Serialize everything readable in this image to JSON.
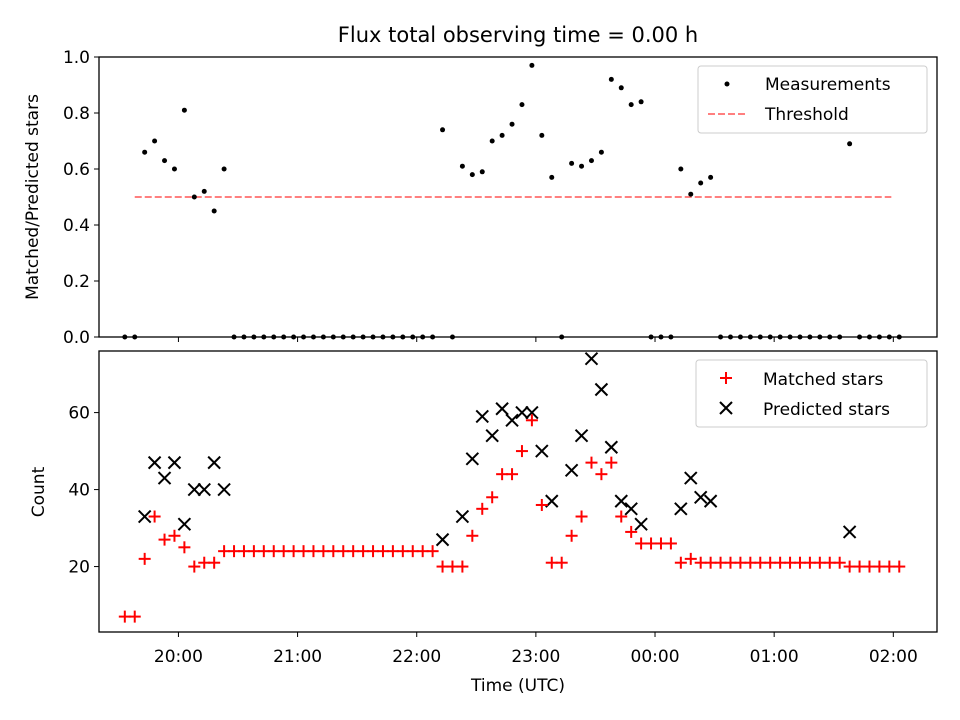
{
  "chart_data": [
    {
      "type": "scatter",
      "title": "Flux total observing time = 0.00 h",
      "ylabel": "Matched/Predicted stars",
      "xlabel": "",
      "ylim": [
        0,
        1.0
      ],
      "yticks": [
        "0.0",
        "0.2",
        "0.4",
        "0.6",
        "0.8",
        "1.0"
      ],
      "legend": {
        "placement": "top-right",
        "entries": [
          "Measurements",
          "Threshold"
        ]
      },
      "threshold": {
        "name": "Threshold",
        "value": 0.5,
        "x_start": "19:38",
        "x_end": "01:59",
        "color": "#ff7f7f"
      },
      "series": [
        {
          "name": "Measurements",
          "color": "#000000",
          "points": [
            [
              "19:33",
              0.0
            ],
            [
              "19:38",
              0.0
            ],
            [
              "19:43",
              0.66
            ],
            [
              "19:48",
              0.7
            ],
            [
              "19:53",
              0.63
            ],
            [
              "19:58",
              0.6
            ],
            [
              "20:03",
              0.81
            ],
            [
              "20:08",
              0.5
            ],
            [
              "20:13",
              0.52
            ],
            [
              "20:18",
              0.45
            ],
            [
              "20:23",
              0.6
            ],
            [
              "20:28",
              0.0
            ],
            [
              "20:33",
              0.0
            ],
            [
              "20:38",
              0.0
            ],
            [
              "20:43",
              0.0
            ],
            [
              "20:48",
              0.0
            ],
            [
              "20:53",
              0.0
            ],
            [
              "20:58",
              0.0
            ],
            [
              "21:03",
              0.0
            ],
            [
              "21:08",
              0.0
            ],
            [
              "21:13",
              0.0
            ],
            [
              "21:18",
              0.0
            ],
            [
              "21:23",
              0.0
            ],
            [
              "21:28",
              0.0
            ],
            [
              "21:33",
              0.0
            ],
            [
              "21:38",
              0.0
            ],
            [
              "21:43",
              0.0
            ],
            [
              "21:48",
              0.0
            ],
            [
              "21:53",
              0.0
            ],
            [
              "21:58",
              0.0
            ],
            [
              "22:03",
              0.0
            ],
            [
              "22:08",
              0.0
            ],
            [
              "22:13",
              0.74
            ],
            [
              "22:18",
              0.0
            ],
            [
              "22:23",
              0.61
            ],
            [
              "22:28",
              0.58
            ],
            [
              "22:33",
              0.59
            ],
            [
              "22:38",
              0.7
            ],
            [
              "22:43",
              0.72
            ],
            [
              "22:48",
              0.76
            ],
            [
              "22:53",
              0.83
            ],
            [
              "22:58",
              0.97
            ],
            [
              "23:03",
              0.72
            ],
            [
              "23:08",
              0.57
            ],
            [
              "23:13",
              0.0
            ],
            [
              "23:18",
              0.62
            ],
            [
              "23:23",
              0.61
            ],
            [
              "23:28",
              0.63
            ],
            [
              "23:33",
              0.66
            ],
            [
              "23:38",
              0.92
            ],
            [
              "23:43",
              0.89
            ],
            [
              "23:48",
              0.83
            ],
            [
              "23:53",
              0.84
            ],
            [
              "23:58",
              0.0
            ],
            [
              "00:03",
              0.0
            ],
            [
              "00:08",
              0.0
            ],
            [
              "00:13",
              0.6
            ],
            [
              "00:18",
              0.51
            ],
            [
              "00:23",
              0.55
            ],
            [
              "00:28",
              0.57
            ],
            [
              "00:33",
              0.0
            ],
            [
              "00:38",
              0.0
            ],
            [
              "00:43",
              0.0
            ],
            [
              "00:48",
              0.0
            ],
            [
              "00:53",
              0.0
            ],
            [
              "00:58",
              0.0
            ],
            [
              "01:03",
              0.0
            ],
            [
              "01:08",
              0.0
            ],
            [
              "01:13",
              0.0
            ],
            [
              "01:18",
              0.0
            ],
            [
              "01:23",
              0.0
            ],
            [
              "01:28",
              0.0
            ],
            [
              "01:33",
              0.0
            ],
            [
              "01:38",
              0.69
            ],
            [
              "01:43",
              0.0
            ],
            [
              "01:48",
              0.0
            ],
            [
              "01:53",
              0.0
            ],
            [
              "01:58",
              0.0
            ],
            [
              "02:03",
              0.0
            ]
          ]
        }
      ]
    },
    {
      "type": "scatter",
      "title": "",
      "ylabel": "Count",
      "xlabel": "Time (UTC)",
      "ylim": [
        3,
        76
      ],
      "yticks": [
        "20",
        "40",
        "60"
      ],
      "xticks": [
        "20:00",
        "21:00",
        "22:00",
        "23:00",
        "00:00",
        "01:00",
        "02:00"
      ],
      "x_start": "19:20",
      "x_end": "02:22",
      "legend": {
        "placement": "top-right",
        "entries": [
          "Matched stars",
          "Predicted stars"
        ]
      },
      "series": [
        {
          "name": "Matched stars",
          "marker": "plus",
          "color": "#ff0000",
          "points": [
            [
              "19:33",
              7
            ],
            [
              "19:38",
              7
            ],
            [
              "19:43",
              22
            ],
            [
              "19:48",
              33
            ],
            [
              "19:53",
              27
            ],
            [
              "19:58",
              28
            ],
            [
              "20:03",
              25
            ],
            [
              "20:08",
              20
            ],
            [
              "20:13",
              21
            ],
            [
              "20:18",
              21
            ],
            [
              "20:23",
              24
            ],
            [
              "20:28",
              24
            ],
            [
              "20:33",
              24
            ],
            [
              "20:38",
              24
            ],
            [
              "20:43",
              24
            ],
            [
              "20:48",
              24
            ],
            [
              "20:53",
              24
            ],
            [
              "20:58",
              24
            ],
            [
              "21:03",
              24
            ],
            [
              "21:08",
              24
            ],
            [
              "21:13",
              24
            ],
            [
              "21:18",
              24
            ],
            [
              "21:23",
              24
            ],
            [
              "21:28",
              24
            ],
            [
              "21:33",
              24
            ],
            [
              "21:38",
              24
            ],
            [
              "21:43",
              24
            ],
            [
              "21:48",
              24
            ],
            [
              "21:53",
              24
            ],
            [
              "21:58",
              24
            ],
            [
              "22:03",
              24
            ],
            [
              "22:08",
              24
            ],
            [
              "22:13",
              20
            ],
            [
              "22:18",
              20
            ],
            [
              "22:23",
              20
            ],
            [
              "22:28",
              28
            ],
            [
              "22:33",
              35
            ],
            [
              "22:38",
              38
            ],
            [
              "22:43",
              44
            ],
            [
              "22:48",
              44
            ],
            [
              "22:53",
              50
            ],
            [
              "22:58",
              58
            ],
            [
              "23:03",
              36
            ],
            [
              "23:08",
              21
            ],
            [
              "23:13",
              21
            ],
            [
              "23:18",
              28
            ],
            [
              "23:23",
              33
            ],
            [
              "23:28",
              47
            ],
            [
              "23:33",
              44
            ],
            [
              "23:38",
              47
            ],
            [
              "23:43",
              33
            ],
            [
              "23:48",
              29
            ],
            [
              "23:53",
              26
            ],
            [
              "23:58",
              26
            ],
            [
              "00:03",
              26
            ],
            [
              "00:08",
              26
            ],
            [
              "00:13",
              21
            ],
            [
              "00:18",
              22
            ],
            [
              "00:23",
              21
            ],
            [
              "00:28",
              21
            ],
            [
              "00:33",
              21
            ],
            [
              "00:38",
              21
            ],
            [
              "00:43",
              21
            ],
            [
              "00:48",
              21
            ],
            [
              "00:53",
              21
            ],
            [
              "00:58",
              21
            ],
            [
              "01:03",
              21
            ],
            [
              "01:08",
              21
            ],
            [
              "01:13",
              21
            ],
            [
              "01:18",
              21
            ],
            [
              "01:23",
              21
            ],
            [
              "01:28",
              21
            ],
            [
              "01:33",
              21
            ],
            [
              "01:38",
              20
            ],
            [
              "01:43",
              20
            ],
            [
              "01:48",
              20
            ],
            [
              "01:53",
              20
            ],
            [
              "01:58",
              20
            ],
            [
              "02:03",
              20
            ]
          ]
        },
        {
          "name": "Predicted stars",
          "marker": "x",
          "color": "#000000",
          "points": [
            [
              "19:43",
              33
            ],
            [
              "19:48",
              47
            ],
            [
              "19:53",
              43
            ],
            [
              "19:58",
              47
            ],
            [
              "20:03",
              31
            ],
            [
              "20:08",
              40
            ],
            [
              "20:13",
              40
            ],
            [
              "20:18",
              47
            ],
            [
              "20:23",
              40
            ],
            [
              "22:13",
              27
            ],
            [
              "22:23",
              33
            ],
            [
              "22:28",
              48
            ],
            [
              "22:33",
              59
            ],
            [
              "22:38",
              54
            ],
            [
              "22:43",
              61
            ],
            [
              "22:48",
              58
            ],
            [
              "22:53",
              60
            ],
            [
              "22:58",
              60
            ],
            [
              "23:03",
              50
            ],
            [
              "23:08",
              37
            ],
            [
              "23:18",
              45
            ],
            [
              "23:23",
              54
            ],
            [
              "23:28",
              74
            ],
            [
              "23:33",
              66
            ],
            [
              "23:38",
              51
            ],
            [
              "23:43",
              37
            ],
            [
              "23:48",
              35
            ],
            [
              "23:53",
              31
            ],
            [
              "00:13",
              35
            ],
            [
              "00:18",
              43
            ],
            [
              "00:23",
              38
            ],
            [
              "00:28",
              37
            ],
            [
              "01:38",
              29
            ]
          ]
        }
      ]
    }
  ]
}
